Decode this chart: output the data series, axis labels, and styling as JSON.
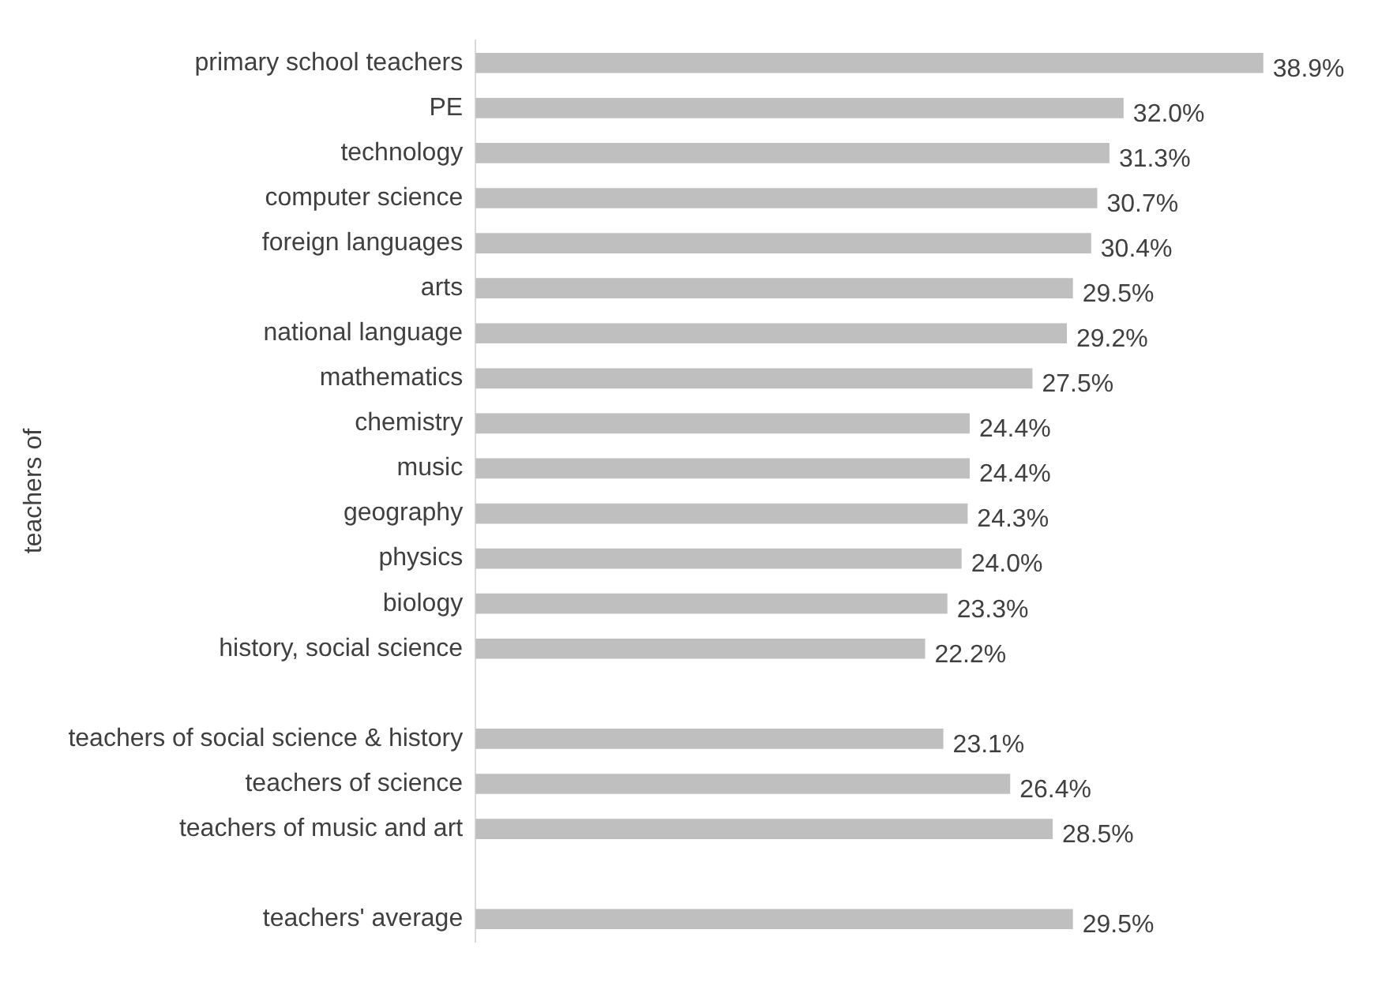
{
  "chart_data": {
    "type": "bar",
    "orientation": "horizontal",
    "ylabel": "teachers of",
    "categories": [
      "primary school teachers",
      "PE",
      "technology",
      "computer science",
      "foreign languages",
      "arts",
      "national language",
      "mathematics",
      "chemistry",
      "music",
      "geography",
      "physics",
      "biology",
      "history, social science",
      null,
      "teachers of social science & history",
      "teachers of science",
      "teachers of music and art",
      null,
      "teachers' average"
    ],
    "values": [
      38.9,
      32.0,
      31.3,
      30.7,
      30.4,
      29.5,
      29.2,
      27.5,
      24.4,
      24.4,
      24.3,
      24.0,
      23.3,
      22.2,
      null,
      23.1,
      26.4,
      28.5,
      null,
      29.5
    ],
    "value_labels": [
      "38.9%",
      "32.0%",
      "31.3%",
      "30.7%",
      "30.4%",
      "29.5%",
      "29.2%",
      "27.5%",
      "24.4%",
      "24.4%",
      "24.3%",
      "24.0%",
      "23.3%",
      "22.2%",
      null,
      "23.1%",
      "26.4%",
      "28.5%",
      null,
      "29.5%"
    ],
    "color": "#bfbfbf"
  }
}
